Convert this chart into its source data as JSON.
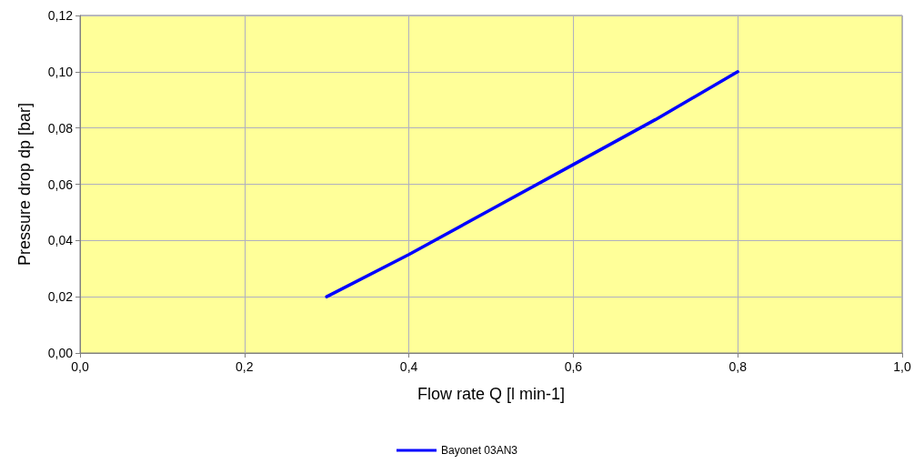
{
  "chart_data": {
    "type": "line",
    "xlabel": "Flow rate Q [l min-1]",
    "ylabel": "Pressure drop dp [bar]",
    "xlim": [
      0,
      1
    ],
    "xticks": [
      {
        "value": 0,
        "label": "0,0"
      },
      {
        "value": 0.2,
        "label": "0,2"
      },
      {
        "value": 0.4,
        "label": "0,4"
      },
      {
        "value": 0.6,
        "label": "0,6"
      },
      {
        "value": 0.8,
        "label": "0,8"
      },
      {
        "value": 1,
        "label": "1,0"
      }
    ],
    "ylim": [
      0,
      0.12
    ],
    "yticks": [
      {
        "value": 0,
        "label": "0,00"
      },
      {
        "value": 0.02,
        "label": "0,02"
      },
      {
        "value": 0.04,
        "label": "0,04"
      },
      {
        "value": 0.06,
        "label": "0,06"
      },
      {
        "value": 0.08,
        "label": "0,08"
      },
      {
        "value": 0.1,
        "label": "0,10"
      },
      {
        "value": 0.12,
        "label": "0,12"
      }
    ],
    "series": [
      {
        "name": "Bayonet 03AN3",
        "color": "#0000ff",
        "x": [
          0.3,
          0.4,
          0.5,
          0.6,
          0.7,
          0.8
        ],
        "values": [
          0.02,
          0.035,
          0.051,
          0.067,
          0.083,
          0.1
        ]
      }
    ],
    "grid": true,
    "legend": "bottom",
    "marker": "none",
    "line_style": "solid"
  }
}
